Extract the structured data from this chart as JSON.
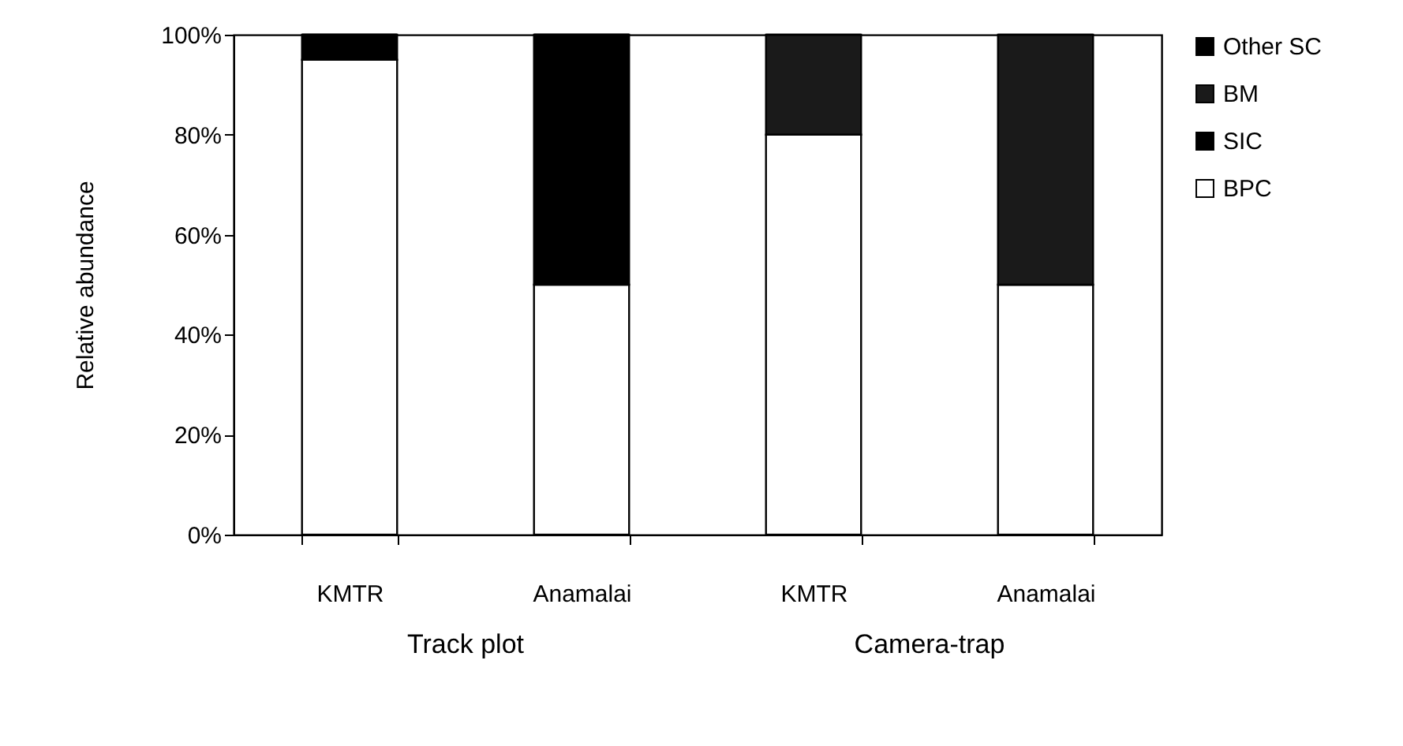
{
  "chart_data": {
    "type": "bar",
    "stacked": true,
    "ylabel": "Relative abundance",
    "categories": [
      "KMTR",
      "Anamalai",
      "KMTR",
      "Anamalai"
    ],
    "series": [
      {
        "name": "BPC",
        "color": "#ffffff",
        "values": [
          95,
          50,
          80,
          50
        ]
      },
      {
        "name": "SIC",
        "color": "#000000",
        "values": [
          5,
          50,
          0,
          0
        ]
      },
      {
        "name": "BM",
        "color": "#1a1a1a",
        "values": [
          0,
          0,
          20,
          50
        ]
      },
      {
        "name": "Other SC",
        "color": "#000000",
        "values": [
          0,
          0,
          0,
          0
        ]
      }
    ],
    "ylim": [
      0,
      100
    ],
    "yticks": [
      {
        "value": 0,
        "label": "0%"
      },
      {
        "value": 20,
        "label": "20%"
      },
      {
        "value": 40,
        "label": "40%"
      },
      {
        "value": 60,
        "label": "60%"
      },
      {
        "value": 80,
        "label": "80%"
      },
      {
        "value": 100,
        "label": "100%"
      }
    ],
    "annotations": [
      "Track plot",
      "Camera-trap"
    ],
    "legend": "right",
    "grid": false
  }
}
